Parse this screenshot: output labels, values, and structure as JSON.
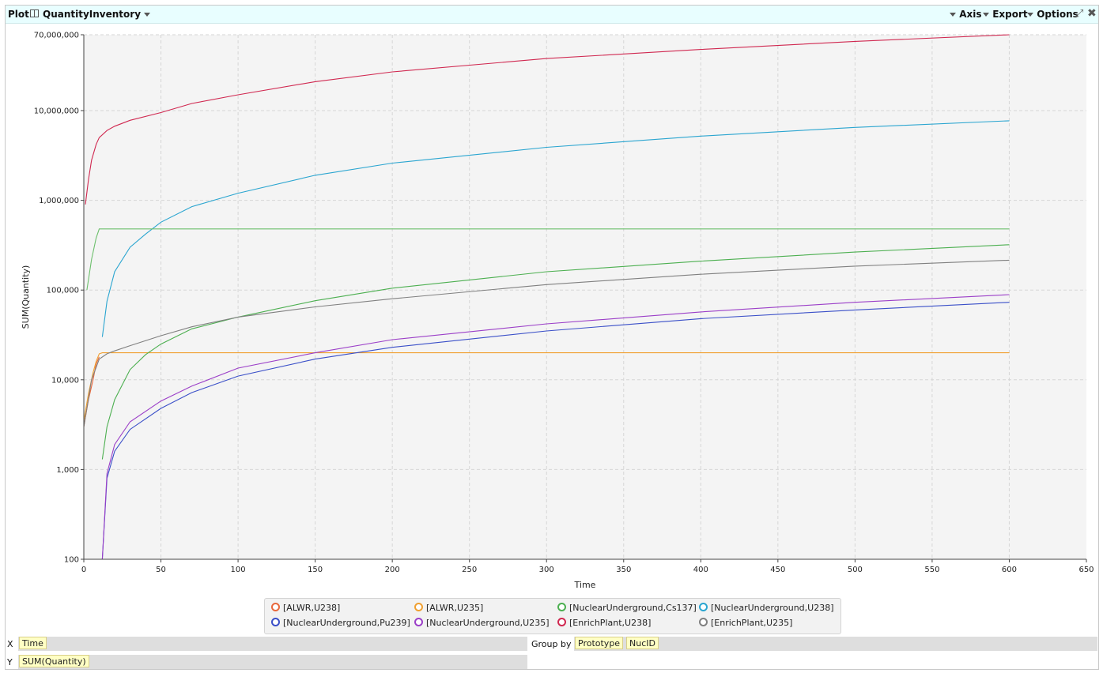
{
  "header": {
    "plot_label": "Plot",
    "table_name": "QuantityInventory",
    "menu_axis": "Axis",
    "menu_export": "Export",
    "menu_options": "Options"
  },
  "controls": {
    "x_label": "X",
    "x_field": "Time",
    "y_label": "Y",
    "y_field": "SUM(Quantity)",
    "group_by_label": "Group by",
    "group_by_fields": [
      "Prototype",
      "NucID"
    ]
  },
  "chart_data": {
    "type": "line",
    "title": "",
    "xlabel": "Time",
    "ylabel": "SUM(Quantity)",
    "xlim": [
      0,
      650
    ],
    "ylim": [
      100,
      70000000
    ],
    "y_scale": "log",
    "grid": true,
    "legend_position": "bottom",
    "x_ticks": [
      "0",
      "50",
      "100",
      "150",
      "200",
      "250",
      "300",
      "350",
      "400",
      "450",
      "500",
      "550",
      "600",
      "650"
    ],
    "y_ticks": [
      {
        "value": 100,
        "label": "100"
      },
      {
        "value": 1000,
        "label": "1,000"
      },
      {
        "value": 10000,
        "label": "10,000"
      },
      {
        "value": 100000,
        "label": "100,000"
      },
      {
        "value": 1000000,
        "label": "1,000,000"
      },
      {
        "value": 10000000,
        "label": "10,000,000"
      },
      {
        "value": 70000000,
        "label": "70,000,000"
      }
    ],
    "series": [
      {
        "name": "[ALWR,U238]",
        "color": "#e8683c",
        "x": [
          0,
          3,
          6,
          8,
          10
        ],
        "y": [
          3000,
          6000,
          10000,
          15000,
          18000
        ]
      },
      {
        "name": "[ALWR,U235]",
        "color": "#f0a030",
        "x": [
          0,
          3,
          6,
          8,
          10,
          12,
          600
        ],
        "y": [
          3500,
          7000,
          12000,
          16000,
          19500,
          20000,
          20000
        ]
      },
      {
        "name": "[NuclearUnderground,Cs137]",
        "color": "#4caf50",
        "x": [
          12,
          15,
          20,
          30,
          40,
          50,
          70,
          100,
          150,
          200,
          300,
          400,
          500,
          600
        ],
        "y": [
          1300,
          3000,
          6000,
          13000,
          19000,
          25000,
          37000,
          50000,
          76000,
          105000,
          160000,
          210000,
          265000,
          320000
        ]
      },
      {
        "name": "[NuclearUnderground,U238]",
        "color": "#2aa5d0",
        "x": [
          12,
          15,
          20,
          30,
          40,
          50,
          70,
          100,
          150,
          200,
          300,
          400,
          500,
          600
        ],
        "y": [
          30000,
          75000,
          160000,
          300000,
          420000,
          570000,
          850000,
          1200000,
          1900000,
          2600000,
          3900000,
          5200000,
          6500000,
          7700000
        ]
      },
      {
        "name": "[NuclearUnderground,Pu239]",
        "color": "#3a4fc8",
        "x": [
          12,
          15,
          20,
          30,
          50,
          70,
          100,
          150,
          200,
          300,
          400,
          500,
          600
        ],
        "y": [
          100,
          800,
          1600,
          2800,
          4800,
          7200,
          11000,
          17000,
          23000,
          35000,
          48000,
          60000,
          73000
        ]
      },
      {
        "name": "[NuclearUnderground,U235]",
        "color": "#9b3fc8",
        "x": [
          12,
          15,
          20,
          30,
          50,
          70,
          100,
          150,
          200,
          300,
          400,
          500,
          600
        ],
        "y": [
          100,
          900,
          1900,
          3400,
          5800,
          8500,
          13500,
          20000,
          28000,
          42000,
          57000,
          73000,
          89000
        ]
      },
      {
        "name": "[EnrichPlant,U238]",
        "color": "#d02850",
        "x": [
          1,
          3,
          5,
          8,
          10,
          15,
          20,
          30,
          50,
          70,
          100,
          150,
          200,
          300,
          400,
          500,
          600
        ],
        "y": [
          900000,
          1700000,
          2800000,
          4200000,
          5000000,
          6000000,
          6700000,
          7800000,
          9500000,
          12000000,
          15000000,
          21000000,
          27000000,
          38000000,
          48000000,
          59000000,
          70000000
        ]
      },
      {
        "name": "[EnrichPlant,U235]",
        "color": "#808080",
        "x": [
          0,
          5,
          10,
          15,
          20,
          30,
          50,
          70,
          100,
          150,
          200,
          300,
          400,
          500,
          600
        ],
        "y": [
          3000,
          10000,
          17000,
          19500,
          21000,
          24000,
          31000,
          39000,
          50000,
          65000,
          80000,
          115000,
          150000,
          185000,
          215000
        ]
      },
      {
        "name": "",
        "color": "#6cbf6c",
        "x": [
          2,
          5,
          8,
          10,
          600
        ],
        "y": [
          100000,
          220000,
          380000,
          480000,
          480000
        ]
      }
    ]
  }
}
